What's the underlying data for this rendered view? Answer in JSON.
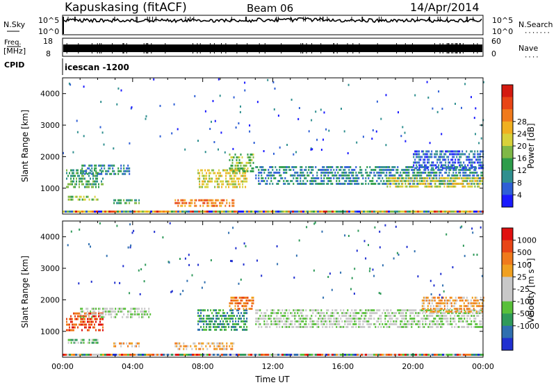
{
  "header": {
    "station": "Kapuskasing (fitACF)",
    "beam": "Beam 06",
    "date": "14/Apr/2014"
  },
  "noise_panel": {
    "left_label": "N.Sky",
    "left_ticks": [
      "10^5",
      "10^0"
    ],
    "right_ticks": [
      "10^5",
      "10^0"
    ],
    "right_label": "N.Search",
    "right_marker": "·······"
  },
  "freq_panel": {
    "left_label_top": "Freq.",
    "left_label_unit": "[MHz]",
    "left_ticks": [
      "18",
      "8"
    ],
    "right_ticks": [
      "60",
      "0"
    ],
    "right_label": "Nave",
    "right_marker": "····"
  },
  "cpid": {
    "label": "CPID",
    "value": "icescan  -1200"
  },
  "chart_data": [
    {
      "type": "heatmap",
      "name": "Power panel",
      "ylabel": "Slant Range [km]",
      "xlabel": "",
      "x_ticks": [
        "00:00",
        "04:00",
        "08:00",
        "12:00",
        "16:00",
        "20:00",
        "00:00"
      ],
      "y_ticks": [
        1000,
        2000,
        3000,
        4000
      ],
      "ylim": [
        180,
        4500
      ],
      "xlim_hours": [
        0,
        24
      ],
      "colorbar": {
        "label": "Power [dB]",
        "ticks": [
          "4",
          "8",
          "12",
          "16",
          "20",
          "24",
          "28"
        ],
        "colors": [
          "#1a1aff",
          "#2e5fd6",
          "#2f8f8f",
          "#2d9c4a",
          "#7fb846",
          "#d8d13a",
          "#f0b020",
          "#f07a1c",
          "#e84516",
          "#d41a10"
        ]
      },
      "regions": [
        {
          "t0": 0.2,
          "t1": 2.3,
          "r0": 1050,
          "r1": 1600,
          "level": 3
        },
        {
          "t0": 1.0,
          "t1": 3.8,
          "r0": 1400,
          "r1": 1750,
          "level": 2
        },
        {
          "t0": 0.3,
          "t1": 2.0,
          "r0": 600,
          "r1": 760,
          "level": 4
        },
        {
          "t0": 2.9,
          "t1": 4.4,
          "r0": 560,
          "r1": 650,
          "level": 3
        },
        {
          "t0": 6.4,
          "t1": 9.8,
          "r0": 430,
          "r1": 650,
          "level": 7
        },
        {
          "t0": 7.7,
          "t1": 10.5,
          "r0": 1000,
          "r1": 1600,
          "level": 5
        },
        {
          "t0": 9.5,
          "t1": 10.9,
          "r0": 1500,
          "r1": 2100,
          "level": 4
        },
        {
          "t0": 11.0,
          "t1": 24.0,
          "r0": 1100,
          "r1": 1700,
          "level": 2
        },
        {
          "t0": 18.5,
          "t1": 24.0,
          "r0": 1050,
          "r1": 1350,
          "level": 5
        },
        {
          "t0": 20.0,
          "t1": 24.0,
          "r0": 1600,
          "r1": 2200,
          "level": 1
        }
      ]
    },
    {
      "type": "heatmap",
      "name": "Velocity panel",
      "ylabel": "Slant Range [km]",
      "xlabel": "Time UT",
      "x_ticks": [
        "00:00",
        "04:00",
        "08:00",
        "12:00",
        "16:00",
        "20:00",
        "00:00"
      ],
      "y_ticks": [
        1000,
        2000,
        3000,
        4000
      ],
      "ylim": [
        180,
        4500
      ],
      "xlim_hours": [
        0,
        24
      ],
      "colorbar": {
        "label": "Velocity [m s⁻¹]",
        "ticks": [
          "1000",
          "500",
          "100",
          "25",
          "-25",
          "-100",
          "-500",
          "-1000"
        ],
        "colors": [
          "#2030d0",
          "#2f6fb0",
          "#2f9a5a",
          "#58c03a",
          "#c8c8c8",
          "#c8c8c8",
          "#f0a020",
          "#f07a1c",
          "#e84516",
          "#e01010"
        ]
      },
      "regions": [
        {
          "t0": 0.2,
          "t1": 2.3,
          "r0": 1050,
          "r1": 1600,
          "level": 8
        },
        {
          "t0": 1.0,
          "t1": 5.0,
          "r0": 1400,
          "r1": 1750,
          "level": 4
        },
        {
          "t0": 0.3,
          "t1": 2.0,
          "r0": 600,
          "r1": 760,
          "level": 3
        },
        {
          "t0": 2.9,
          "t1": 4.4,
          "r0": 560,
          "r1": 650,
          "level": 6
        },
        {
          "t0": 6.4,
          "t1": 9.8,
          "r0": 430,
          "r1": 650,
          "level": 6
        },
        {
          "t0": 7.7,
          "t1": 10.5,
          "r0": 1000,
          "r1": 1700,
          "level": 2
        },
        {
          "t0": 9.5,
          "t1": 10.9,
          "r0": 1700,
          "r1": 2100,
          "level": 7
        },
        {
          "t0": 11.0,
          "t1": 24.0,
          "r0": 1100,
          "r1": 1700,
          "level": 4
        },
        {
          "t0": 20.5,
          "t1": 24.0,
          "r0": 1600,
          "r1": 2100,
          "level": 6
        }
      ]
    }
  ]
}
